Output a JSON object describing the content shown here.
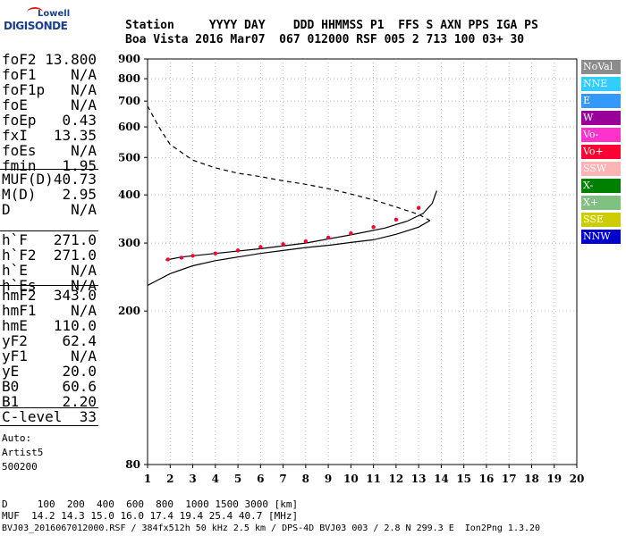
{
  "logo": {
    "line1": "Lowell",
    "line2": "DIGISONDE"
  },
  "header": {
    "line1": "Station     YYYY DAY    DDD HHMMSS P1  FFS S AXN PPS IGA PS",
    "line2": "Boa Vista 2016 Mar07  067 012000 RSF 005 2 713 100 03+ 30"
  },
  "sidebar": {
    "group1": [
      {
        "key": "foF2",
        "value": "13.800"
      },
      {
        "key": "foF1",
        "value": "N/A"
      },
      {
        "key": "foF1p",
        "value": "N/A"
      },
      {
        "key": "foE",
        "value": "N/A"
      },
      {
        "key": "foEp",
        "value": "0.43"
      },
      {
        "key": "fxI",
        "value": "13.35"
      },
      {
        "key": "foEs",
        "value": "N/A"
      },
      {
        "key": "fmin",
        "value": "1.95"
      }
    ],
    "group2": [
      {
        "key": "MUF(D)",
        "value": "40.73"
      },
      {
        "key": "M(D)",
        "value": "2.95"
      },
      {
        "key": "D",
        "value": "N/A"
      }
    ],
    "group3": [
      {
        "key": "h`F",
        "value": "271.0"
      },
      {
        "key": "h`F2",
        "value": "271.0"
      },
      {
        "key": "h`E",
        "value": "N/A"
      },
      {
        "key": "h`Es",
        "value": "N/A"
      }
    ],
    "group4": [
      {
        "key": "hmF2",
        "value": "343.0"
      },
      {
        "key": "hmF1",
        "value": "N/A"
      },
      {
        "key": "hmE",
        "value": "110.0"
      },
      {
        "key": "yF2",
        "value": "62.4"
      },
      {
        "key": "yF1",
        "value": "N/A"
      },
      {
        "key": "yE",
        "value": "20.0"
      },
      {
        "key": "B0",
        "value": "60.6"
      },
      {
        "key": "B1",
        "value": "2.20"
      }
    ],
    "group5": [
      {
        "key": "C-level",
        "value": "33"
      }
    ],
    "auto_lines": [
      "Auto:",
      "Artist5",
      "500200"
    ]
  },
  "footer": {
    "line1": "D     100  200  400  600  800  1000 1500 3000 [km]",
    "line2": "MUF  14.2 14.3 15.0 16.0 17.4 19.4 25.4 40.7 [MHz]",
    "line3": "BVJ03_2016067012000.RSF / 384fx512h 50 kHz 2.5 km / DPS-4D BVJ03 003 / 2.8 N 299.3 E  Ion2Png 1.3.20"
  },
  "legend": [
    {
      "label": "NoVal",
      "color": "#8c8c8c",
      "text_color": "#ffffff"
    },
    {
      "label": "NNE",
      "color": "#33ccff",
      "text_color": "#ffffff"
    },
    {
      "label": "E",
      "color": "#3399ff",
      "text_color": "#ffffff"
    },
    {
      "label": "W",
      "color": "#990099",
      "text_color": "#ffffff"
    },
    {
      "label": "Vo-",
      "color": "#ff33cc",
      "text_color": "#ffffff"
    },
    {
      "label": "Vo+",
      "color": "#ff0033",
      "text_color": "#ffffff"
    },
    {
      "label": "SSW",
      "color": "#ffb3b3",
      "text_color": "#ffffff"
    },
    {
      "label": "X-",
      "color": "#008000",
      "text_color": "#ffffff"
    },
    {
      "label": "X+",
      "color": "#80c080",
      "text_color": "#ffffff"
    },
    {
      "label": "SSE",
      "color": "#cccc00",
      "text_color": "#ffffff"
    },
    {
      "label": "NNW",
      "color": "#0000cc",
      "text_color": "#ffffff"
    }
  ],
  "chart_data": {
    "type": "scatter",
    "title": "",
    "xlabel": "",
    "ylabel": "",
    "xlim": [
      1,
      20
    ],
    "ylim": [
      80,
      900
    ],
    "x_ticks": [
      1,
      2,
      3,
      4,
      5,
      6,
      7,
      8,
      9,
      10,
      11,
      12,
      13,
      14,
      15,
      16,
      17,
      18,
      19,
      20
    ],
    "y_ticks": [
      80,
      200,
      300,
      400,
      500,
      600,
      700,
      800,
      900
    ],
    "y_scale": "log",
    "grid": "dotted",
    "series": [
      {
        "name": "",
        "style": "solid",
        "color": "#000000",
        "points": [
          [
            1.0,
            233
          ],
          [
            2.0,
            250
          ],
          [
            3.0,
            262
          ],
          [
            4.0,
            270
          ],
          [
            5.0,
            276
          ],
          [
            6.0,
            282
          ],
          [
            7.0,
            287
          ],
          [
            8.0,
            292
          ],
          [
            9.0,
            296
          ],
          [
            10.0,
            301
          ],
          [
            11.0,
            306
          ],
          [
            12.0,
            316
          ],
          [
            13.0,
            330
          ],
          [
            13.5,
            343
          ]
        ]
      },
      {
        "name": "",
        "style": "dashed",
        "color": "#000000",
        "points": [
          [
            1.0,
            680
          ],
          [
            1.5,
            600
          ],
          [
            2.0,
            540
          ],
          [
            3.0,
            492
          ],
          [
            4.0,
            470
          ],
          [
            5.0,
            455
          ],
          [
            6.0,
            446
          ],
          [
            7.0,
            435
          ],
          [
            8.0,
            426
          ],
          [
            9.0,
            415
          ],
          [
            10.0,
            402
          ],
          [
            11.0,
            388
          ],
          [
            12.0,
            372
          ],
          [
            13.0,
            356
          ],
          [
            13.5,
            343
          ]
        ]
      },
      {
        "name": "",
        "style": "solid",
        "color": "#000000",
        "points": [
          [
            1.8,
            271
          ],
          [
            2.5,
            276
          ],
          [
            4.0,
            282
          ],
          [
            6.0,
            290
          ],
          [
            8.0,
            300
          ],
          [
            10.0,
            315
          ],
          [
            11.5,
            328
          ],
          [
            12.5,
            342
          ],
          [
            13.2,
            358
          ],
          [
            13.6,
            380
          ],
          [
            13.8,
            410
          ]
        ]
      },
      {
        "name": "",
        "style": "scatter",
        "color": "#ff0033",
        "points": [
          [
            1.9,
            272
          ],
          [
            2.5,
            275
          ],
          [
            3.0,
            278
          ],
          [
            4.0,
            282
          ],
          [
            5.0,
            287
          ],
          [
            6.0,
            293
          ],
          [
            7.0,
            298
          ],
          [
            8.0,
            303
          ],
          [
            9.0,
            310
          ],
          [
            10.0,
            318
          ],
          [
            11.0,
            330
          ],
          [
            12.0,
            345
          ],
          [
            13.0,
            370
          ]
        ]
      }
    ]
  }
}
